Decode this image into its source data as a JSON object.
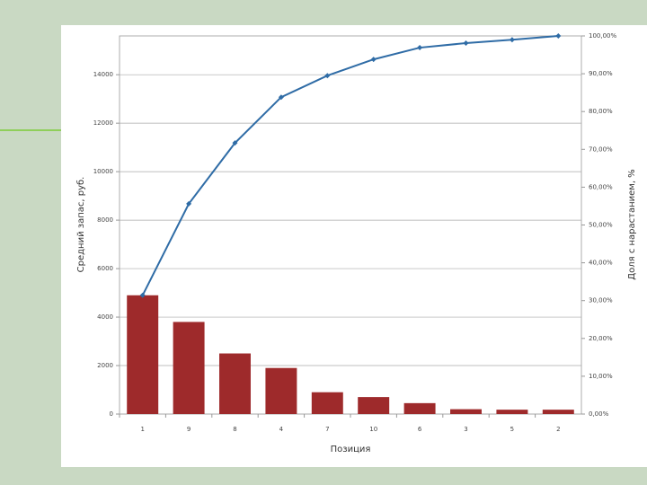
{
  "chart_data": {
    "type": "bar",
    "x_label": "Позиция",
    "y_label": "Средний запас, руб.",
    "y2_label": "Доля с нарастанием, %",
    "categories": [
      "1",
      "9",
      "8",
      "4",
      "7",
      "10",
      "6",
      "3",
      "5",
      "2"
    ],
    "series": [
      {
        "type": "bar",
        "color": "#9e2a2b",
        "values": [
          4900,
          3800,
          2500,
          1900,
          900,
          700,
          450,
          200,
          180,
          180
        ]
      },
      {
        "type": "line",
        "axis": "y2",
        "color": "#2f6ca6",
        "values": [
          31.4,
          55.6,
          71.7,
          83.8,
          89.5,
          93.8,
          96.9,
          98.1,
          99,
          100
        ]
      }
    ],
    "ylim": [
      0,
      15600
    ],
    "yticks": [
      0,
      2000,
      4000,
      6000,
      8000,
      10000,
      12000,
      14000
    ],
    "y2lim": [
      0,
      100
    ],
    "y2ticks": [
      {
        "value": 0,
        "label": "0,00%"
      },
      {
        "value": 10,
        "label": "10,00%"
      },
      {
        "value": 20,
        "label": "20,00%"
      },
      {
        "value": 30,
        "label": "30,00%"
      },
      {
        "value": 40,
        "label": "40,00%"
      },
      {
        "value": 50,
        "label": "50,00%"
      },
      {
        "value": 60,
        "label": "60,00%"
      },
      {
        "value": 70,
        "label": "70,00%"
      },
      {
        "value": 80,
        "label": "80,00%"
      },
      {
        "value": 90,
        "label": "90,00%"
      },
      {
        "value": 100,
        "label": "100,00%"
      }
    ],
    "grid": true
  }
}
